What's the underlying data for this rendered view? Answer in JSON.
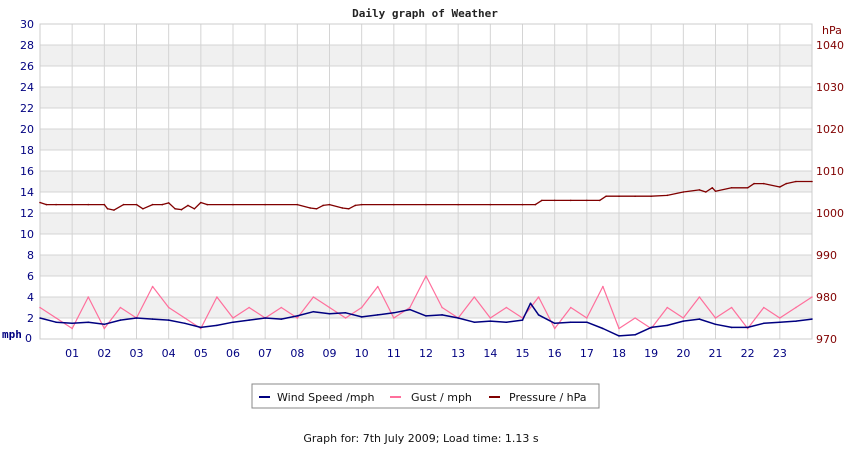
{
  "chart_data": {
    "type": "line",
    "title": "Daily graph of Weather",
    "x_ticks": [
      "01",
      "02",
      "03",
      "04",
      "05",
      "06",
      "07",
      "08",
      "09",
      "10",
      "11",
      "12",
      "13",
      "14",
      "15",
      "16",
      "17",
      "18",
      "19",
      "20",
      "21",
      "22",
      "23"
    ],
    "x_range_hours": [
      0,
      24
    ],
    "y_left": {
      "unit": "mph",
      "range": [
        0,
        30
      ],
      "ticks": [
        0,
        2,
        4,
        6,
        8,
        10,
        12,
        14,
        16,
        18,
        20,
        22,
        24,
        26,
        28,
        30
      ]
    },
    "y_right": {
      "unit": "hPa",
      "range": [
        970,
        1045
      ],
      "ticks": [
        970,
        980,
        990,
        1000,
        1010,
        1020,
        1030,
        1040
      ]
    },
    "grid": true,
    "legend_position": "bottom-center",
    "colors": {
      "wind": "#000080",
      "gust": "#ff6f9c",
      "pressure": "#800000",
      "band": "#f0f0f0",
      "grid": "#d4d4d4",
      "frame": "#cccccc"
    },
    "series": [
      {
        "name": "Wind Speed /mph",
        "axis": "left",
        "x": [
          0,
          0.5,
          1,
          1.5,
          2,
          2.5,
          3,
          3.5,
          4,
          4.5,
          5,
          5.5,
          6,
          6.5,
          7,
          7.5,
          8,
          8.5,
          9,
          9.5,
          10,
          10.5,
          11,
          11.5,
          12,
          12.5,
          13,
          13.5,
          14,
          14.5,
          15,
          15.25,
          15.5,
          16,
          16.5,
          17,
          17.5,
          18,
          18.5,
          19,
          19.5,
          20,
          20.5,
          21,
          21.5,
          22,
          22.5,
          23,
          23.5,
          24
        ],
        "y": [
          2,
          1.6,
          1.5,
          1.6,
          1.4,
          1.8,
          2.0,
          1.9,
          1.8,
          1.5,
          1.1,
          1.3,
          1.6,
          1.8,
          2.0,
          1.9,
          2.2,
          2.6,
          2.4,
          2.5,
          2.1,
          2.3,
          2.5,
          2.8,
          2.2,
          2.3,
          2.0,
          1.6,
          1.7,
          1.6,
          1.8,
          3.4,
          2.3,
          1.5,
          1.6,
          1.6,
          1.0,
          0.3,
          0.4,
          1.1,
          1.3,
          1.7,
          1.9,
          1.4,
          1.1,
          1.1,
          1.5,
          1.6,
          1.7,
          1.9
        ]
      },
      {
        "name": "Gust / mph",
        "axis": "left",
        "x": [
          0,
          0.5,
          1,
          1.5,
          2,
          2.5,
          3,
          3.5,
          4,
          4.5,
          5,
          5.5,
          6,
          6.5,
          7,
          7.5,
          8,
          8.5,
          9,
          9.5,
          10,
          10.5,
          11,
          11.5,
          12,
          12.5,
          13,
          13.5,
          14,
          14.5,
          15,
          15.5,
          16,
          16.5,
          17,
          17.5,
          18,
          18.5,
          19,
          19.5,
          20,
          20.5,
          21,
          21.5,
          22,
          22.5,
          23,
          23.5,
          24
        ],
        "y": [
          3,
          2,
          1,
          4,
          1,
          3,
          2,
          5,
          3,
          2,
          1,
          4,
          2,
          3,
          2,
          3,
          2,
          4,
          3,
          2,
          3,
          5,
          2,
          3,
          6,
          3,
          2,
          4,
          2,
          3,
          2,
          4,
          1,
          3,
          2,
          5,
          1,
          2,
          1,
          3,
          2,
          4,
          2,
          3,
          1,
          3,
          2,
          3,
          4
        ]
      },
      {
        "name": "Pressure / hPa",
        "axis": "right",
        "x": [
          0,
          0.2,
          0.5,
          1,
          1.5,
          2,
          2.1,
          2.3,
          2.6,
          3,
          3.2,
          3.5,
          3.8,
          4,
          4.2,
          4.4,
          4.6,
          4.8,
          5,
          5.2,
          6,
          7,
          8,
          8.4,
          8.6,
          8.8,
          9,
          9.4,
          9.6,
          9.8,
          10,
          11,
          12,
          13,
          14,
          15,
          15.4,
          15.6,
          16,
          16.5,
          17,
          17.4,
          17.6,
          18,
          18.5,
          19,
          19.5,
          20,
          20.5,
          20.7,
          20.9,
          21,
          21.5,
          22,
          22.2,
          22.5,
          23,
          23.2,
          23.5,
          24
        ],
        "y": [
          1002.5,
          1002,
          1002,
          1002,
          1002,
          1002,
          1001,
          1000.7,
          1002,
          1002,
          1001,
          1002,
          1002,
          1002.4,
          1001,
          1000.8,
          1001.8,
          1001,
          1002.5,
          1002,
          1002,
          1002,
          1002,
          1001.2,
          1001,
          1001.8,
          1002,
          1001.2,
          1001,
          1001.8,
          1002,
          1002,
          1002,
          1002,
          1002,
          1002,
          1002,
          1003,
          1003,
          1003,
          1003,
          1003,
          1004,
          1004,
          1004,
          1004,
          1004.2,
          1005,
          1005.5,
          1005,
          1006,
          1005.2,
          1006,
          1006,
          1007,
          1007,
          1006.2,
          1007,
          1007.5,
          1007.5
        ]
      }
    ]
  },
  "legend": [
    {
      "label": "Wind Speed /mph",
      "color": "#000080"
    },
    {
      "label": "Gust / mph",
      "color": "#ff6f9c"
    },
    {
      "label": "Pressure / hPa",
      "color": "#800000"
    }
  ],
  "footer": {
    "text": "Graph for: 7th July 2009; Load time: 1.13 s"
  }
}
